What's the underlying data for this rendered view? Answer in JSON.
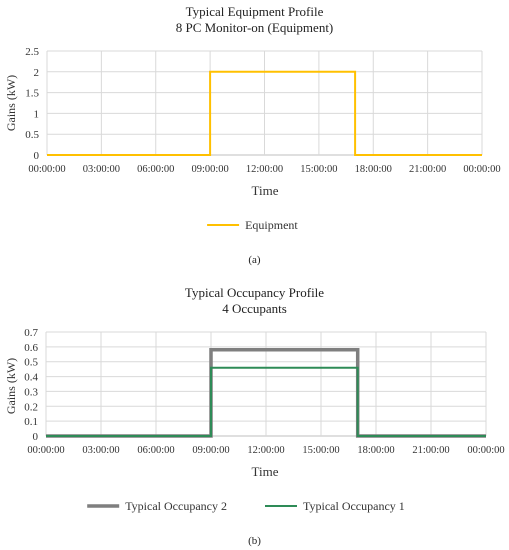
{
  "chart_data": [
    {
      "type": "line",
      "title": "Typical Equipment Profile",
      "subtitle": "8 PC Monitor-on (Equipment)",
      "xlabel": "Time",
      "ylabel": "Gains (kW)",
      "x_ticks": [
        "00:00:00",
        "03:00:00",
        "06:00:00",
        "09:00:00",
        "12:00:00",
        "15:00:00",
        "18:00:00",
        "21:00:00",
        "00:00:00"
      ],
      "y_ticks": [
        "0",
        "0.5",
        "1",
        "1.5",
        "2",
        "2.5"
      ],
      "ylim": [
        0,
        2.5
      ],
      "xlim_hours": [
        0,
        24
      ],
      "grid": true,
      "legend_position": "bottom",
      "series": [
        {
          "name": "Equipment",
          "color": "#FFC000",
          "width": 2,
          "x_hours": [
            0,
            9,
            9,
            17,
            17,
            24
          ],
          "values": [
            0,
            0,
            2,
            2,
            0,
            0
          ]
        }
      ],
      "panel_label": "(a)"
    },
    {
      "type": "line",
      "title": "Typical Occupancy Profile",
      "subtitle": "4 Occupants",
      "xlabel": "Time",
      "ylabel": "Gains (kW)",
      "x_ticks": [
        "00:00:00",
        "03:00:00",
        "06:00:00",
        "09:00:00",
        "12:00:00",
        "15:00:00",
        "18:00:00",
        "21:00:00",
        "00:00:00"
      ],
      "y_ticks": [
        "0",
        "0.1",
        "0.2",
        "0.3",
        "0.4",
        "0.5",
        "0.6",
        "0.7"
      ],
      "ylim": [
        0,
        0.7
      ],
      "xlim_hours": [
        0,
        24
      ],
      "grid": true,
      "legend_position": "bottom",
      "series": [
        {
          "name": "Typical Occupancy 2",
          "color": "#7F7F7F",
          "width": 3.5,
          "x_hours": [
            0,
            9,
            9,
            17,
            17,
            24
          ],
          "values": [
            0,
            0,
            0.58,
            0.58,
            0,
            0
          ]
        },
        {
          "name": "Typical Occupancy 1",
          "color": "#2E8B57",
          "width": 2,
          "x_hours": [
            0,
            9,
            9,
            17,
            17,
            24
          ],
          "values": [
            0,
            0,
            0.46,
            0.46,
            0,
            0
          ]
        }
      ],
      "panel_label": "(b)"
    }
  ]
}
